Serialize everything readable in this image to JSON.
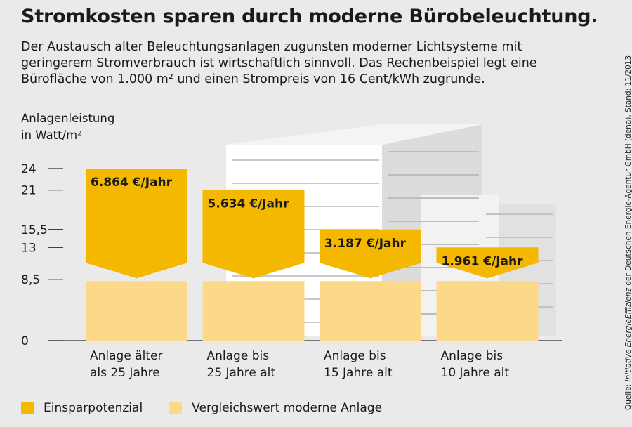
{
  "title": "Stromkosten sparen durch moderne Bürobeleuchtung.",
  "subtitle": "Der Austausch alter Beleuchtungsanlagen zugunsten moderner Lichtsysteme mit geringerem Stromverbrauch ist wirtschaftlich sinnvoll. Das Rechenbeispiel legt eine Bürofläche von 1.000 m² und einen Strompreis von 16 Cent/kWh zugrunde.",
  "source": {
    "prefix": "Quelle: ",
    "italic": "Initiative EnergieEffizienz",
    "suffix": " der Deutschen Energie-Agentur GmbH (dena), Stand: 11/2013"
  },
  "legend": {
    "savings": "Einsparpotenzial",
    "reference": "Vergleichswert moderne Anlage"
  },
  "colors": {
    "savings": "#f5b800",
    "reference": "#fcd98a",
    "background": "#eaeaea",
    "axis": "#2a2a2a"
  },
  "chart_data": {
    "type": "bar",
    "ylabel": "Anlagenleistung\nin Watt/m²",
    "yticks": [
      0,
      8.5,
      13,
      15.5,
      21,
      24
    ],
    "ytick_labels": [
      "0",
      "8,5",
      "13",
      "15,5",
      "21",
      "24"
    ],
    "ylim": [
      0,
      24
    ],
    "categories": [
      "Anlage älter\nals 25 Jahre",
      "Anlage bis\n25 Jahre alt",
      "Anlage bis\n15 Jahre alt",
      "Anlage bis\n10 Jahre alt"
    ],
    "series": [
      {
        "name": "Vergleichswert moderne Anlage",
        "values": [
          8.5,
          8.5,
          8.5,
          8.5
        ]
      },
      {
        "name": "Einsparpotenzial",
        "values": [
          15.5,
          12.5,
          7,
          4.5
        ]
      }
    ],
    "totals": [
      24,
      21,
      15.5,
      13
    ],
    "data_labels": [
      "6.864 €/Jahr",
      "5.634 €/Jahr",
      "3.187 €/Jahr",
      "1.961 €/Jahr"
    ]
  }
}
